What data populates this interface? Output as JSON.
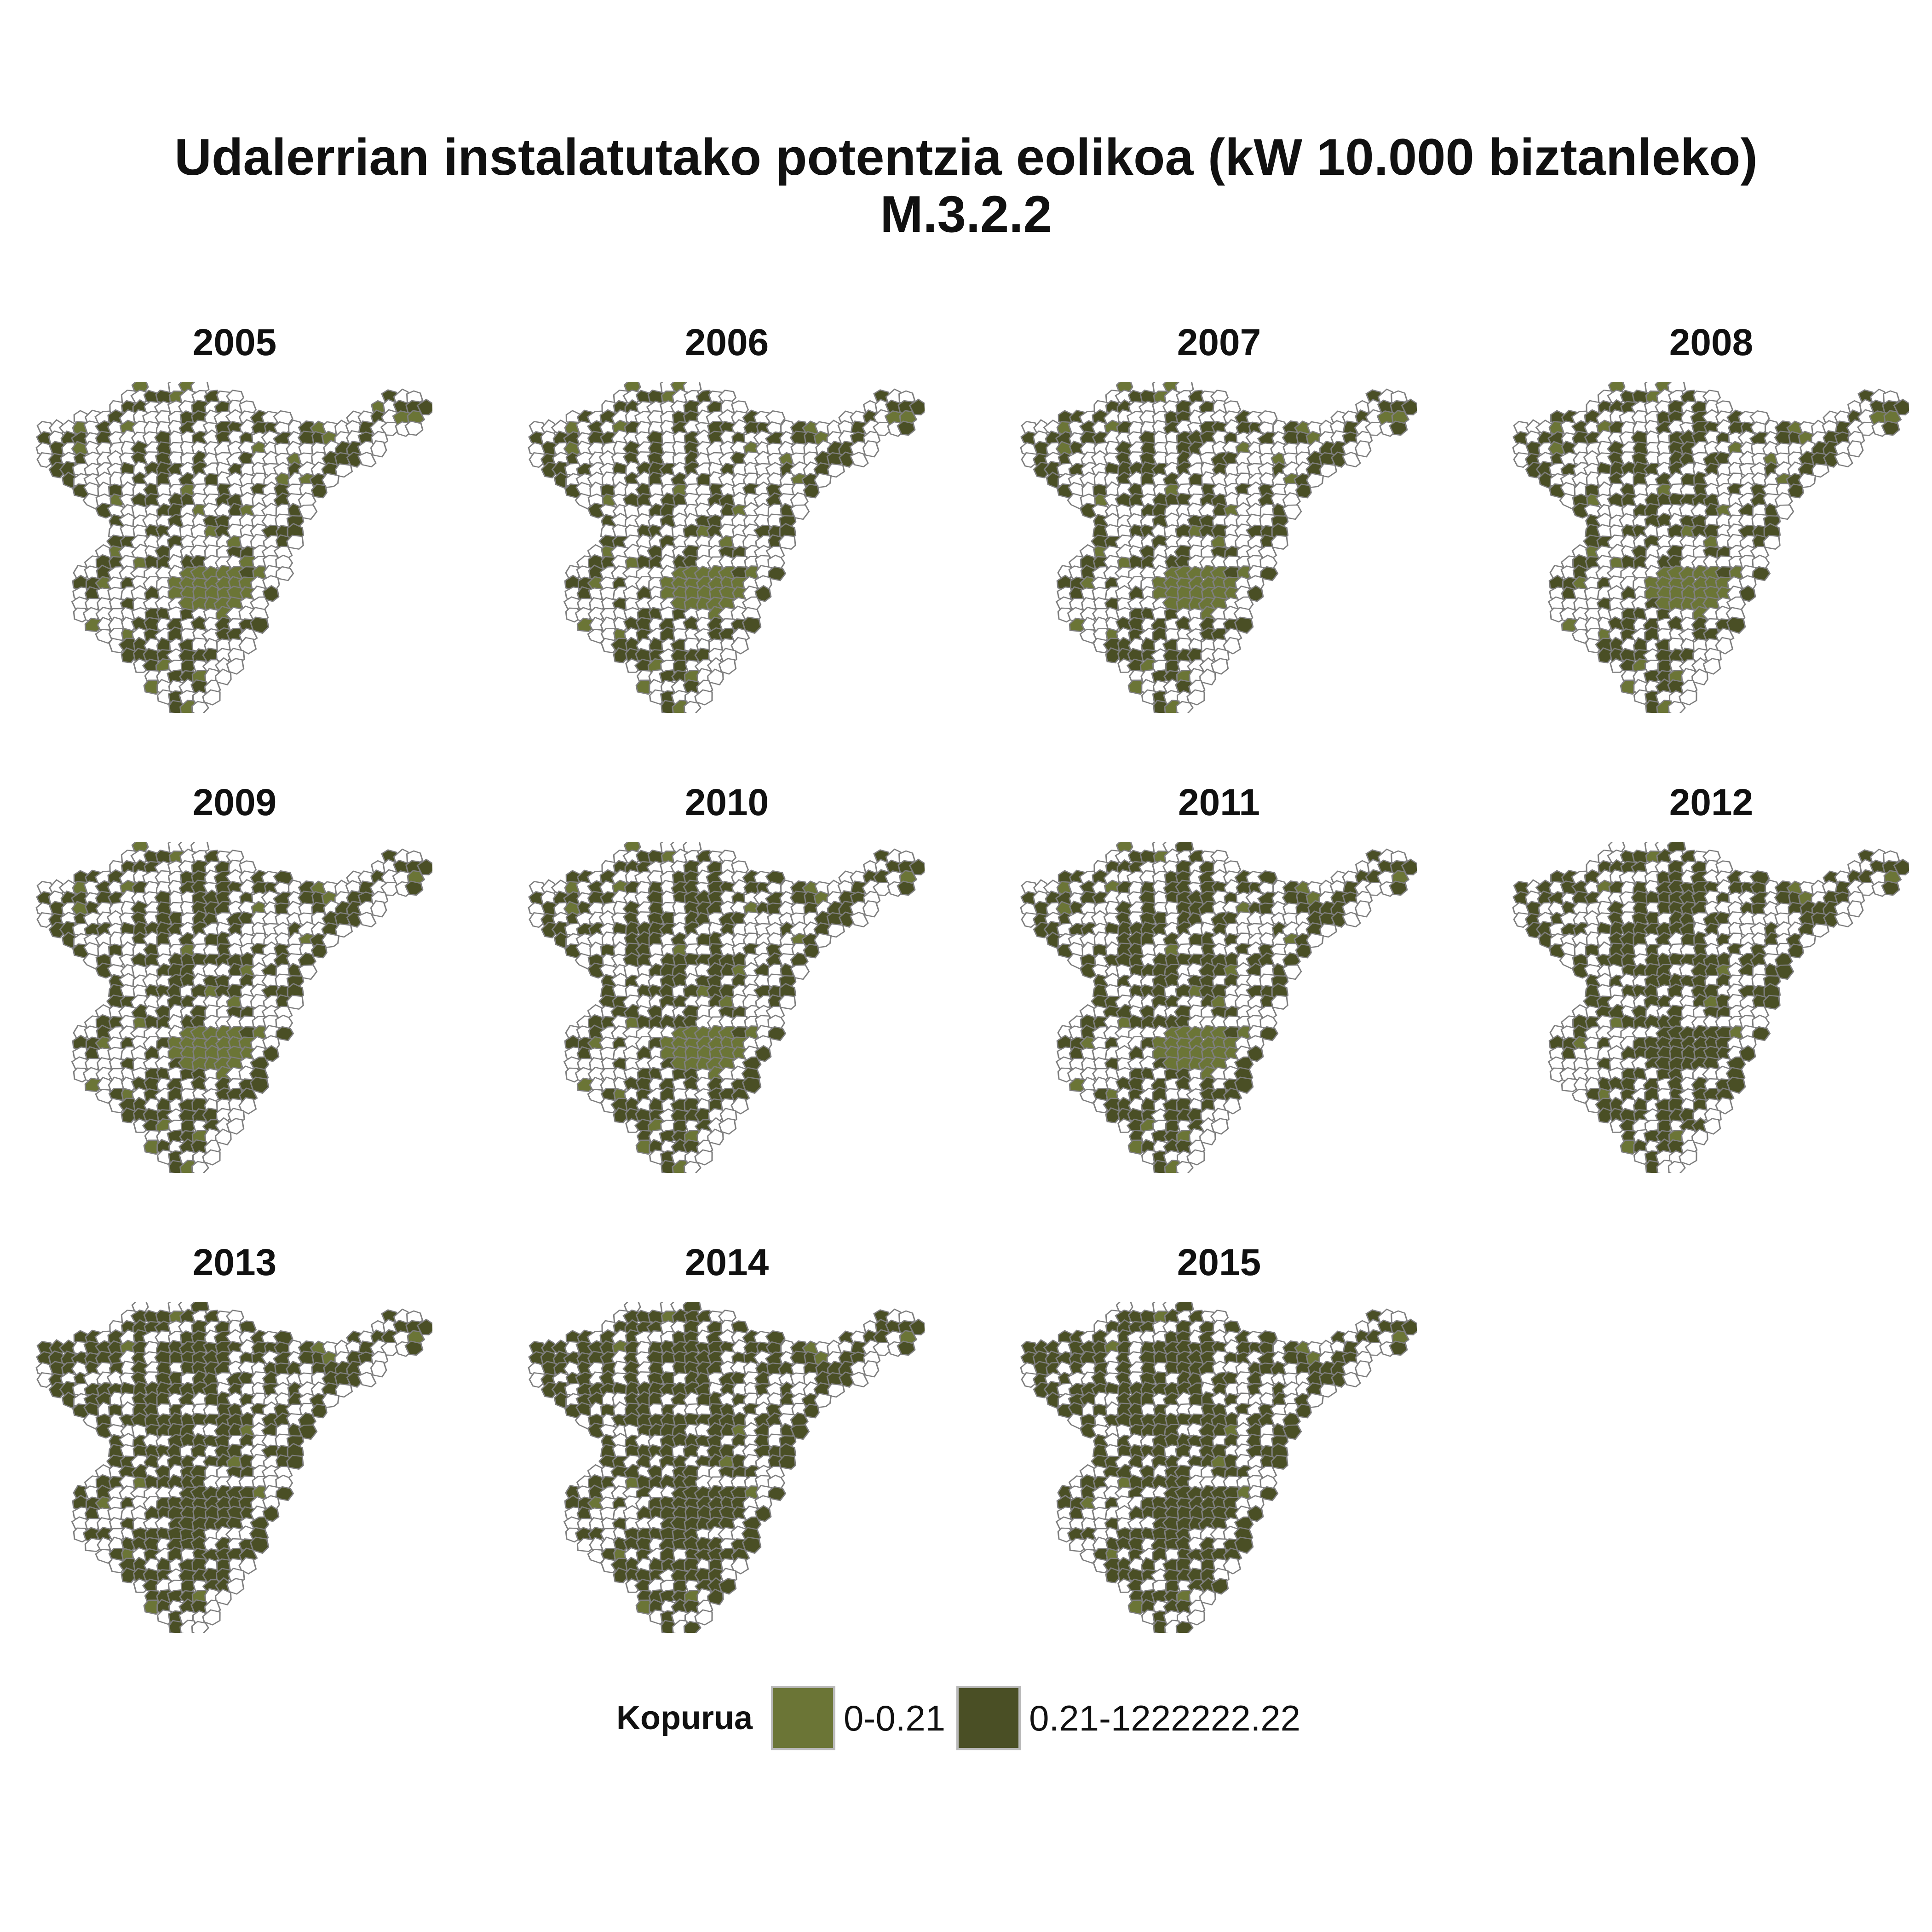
{
  "title": {
    "line1": "Udalerrian instalatutako potentzia eolikoa (kW  10.000 biztanleko)",
    "line2": "M.3.2.2"
  },
  "legend": {
    "title": "Kopurua",
    "items": [
      {
        "label": "0-0.21",
        "color": "#6b7536"
      },
      {
        "label": "0.21-1222222.22",
        "color": "#4a4f25"
      }
    ]
  },
  "colors": {
    "empty": "#ffffff",
    "outline": "#7f7f7f"
  },
  "panels": [
    {
      "year": "2005",
      "dark": 0.3,
      "light": 0.06
    },
    {
      "year": "2006",
      "dark": 0.32,
      "light": 0.05
    },
    {
      "year": "2007",
      "dark": 0.34,
      "light": 0.05
    },
    {
      "year": "2008",
      "dark": 0.36,
      "light": 0.05
    },
    {
      "year": "2009",
      "dark": 0.42,
      "light": 0.04
    },
    {
      "year": "2010",
      "dark": 0.44,
      "light": 0.04
    },
    {
      "year": "2011",
      "dark": 0.45,
      "light": 0.04
    },
    {
      "year": "2012",
      "dark": 0.5,
      "light": 0.02
    },
    {
      "year": "2013",
      "dark": 0.55,
      "light": 0.02
    },
    {
      "year": "2014",
      "dark": 0.58,
      "light": 0.02
    },
    {
      "year": "2015",
      "dark": 0.57,
      "light": 0.02
    }
  ]
}
